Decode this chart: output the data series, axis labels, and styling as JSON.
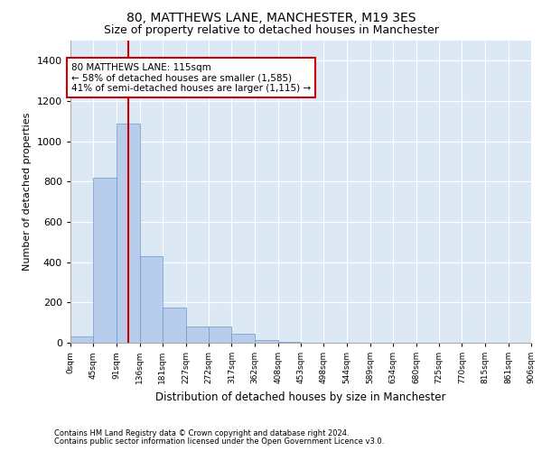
{
  "title1": "80, MATTHEWS LANE, MANCHESTER, M19 3ES",
  "title2": "Size of property relative to detached houses in Manchester",
  "xlabel": "Distribution of detached houses by size in Manchester",
  "ylabel": "Number of detached properties",
  "footer1": "Contains HM Land Registry data © Crown copyright and database right 2024.",
  "footer2": "Contains public sector information licensed under the Open Government Licence v3.0.",
  "annotation_line1": "80 MATTHEWS LANE: 115sqm",
  "annotation_line2": "← 58% of detached houses are smaller (1,585)",
  "annotation_line3": "41% of semi-detached houses are larger (1,115) →",
  "bar_color": "#b8cceb",
  "bar_edge_color": "#6699cc",
  "plot_bg_color": "#dde8f5",
  "red_line_color": "#cc0000",
  "annotation_box_color": "#cc0000",
  "ylim": [
    0,
    1500
  ],
  "yticks": [
    0,
    200,
    400,
    600,
    800,
    1000,
    1200,
    1400
  ],
  "bin_edges": [
    0,
    45,
    91,
    136,
    181,
    227,
    272,
    317,
    362,
    408,
    453,
    498,
    544,
    589,
    634,
    680,
    725,
    770,
    815,
    861,
    906
  ],
  "bar_heights": [
    30,
    820,
    1090,
    430,
    175,
    80,
    80,
    45,
    15,
    5,
    0,
    0,
    0,
    0,
    0,
    0,
    0,
    0,
    0,
    0
  ],
  "red_line_x": 113,
  "grid_color": "#ffffff",
  "spine_color": "#aaaaaa"
}
